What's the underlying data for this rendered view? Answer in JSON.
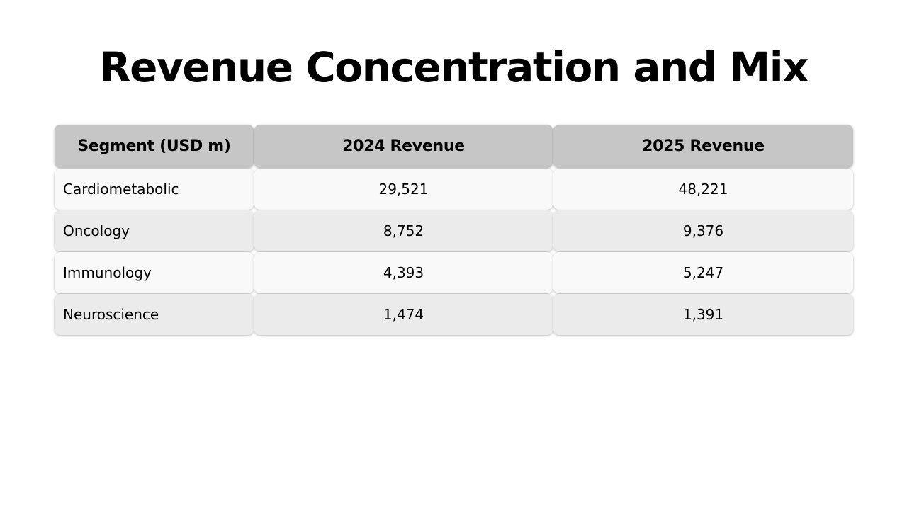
{
  "title": "Revenue Concentration and Mix",
  "table": {
    "headers": [
      "Segment (USD m)",
      "2024 Revenue",
      "2025 Revenue"
    ],
    "rows": [
      [
        "Cardiometabolic",
        "29,521",
        "48,221"
      ],
      [
        "Oncology",
        "8,752",
        "9,376"
      ],
      [
        "Immunology",
        "4,393",
        "5,247"
      ],
      [
        "Neuroscience",
        "1,474",
        "1,391"
      ]
    ]
  },
  "colors": {
    "header_bg": "#c6c6c6",
    "row_light": "#f9f9f9",
    "row_dark": "#ebebeb"
  }
}
